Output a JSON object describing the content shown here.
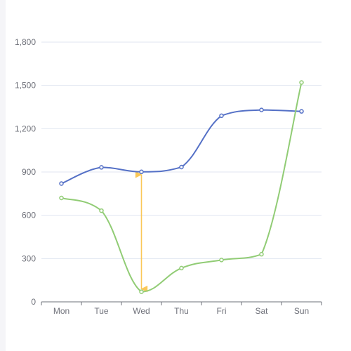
{
  "chart_data": {
    "type": "line",
    "categories": [
      "Mon",
      "Tue",
      "Wed",
      "Thu",
      "Fri",
      "Sat",
      "Sun"
    ],
    "series": [
      {
        "values": [
          820,
          932,
          901,
          934,
          1290,
          1330,
          1320
        ],
        "color": "#5470c6",
        "smooth": true
      },
      {
        "values": [
          720,
          632,
          70,
          234,
          290,
          330,
          1520
        ],
        "color": "#91cc75",
        "smooth": true
      }
    ],
    "yticks": [
      0,
      300,
      600,
      900,
      1200,
      1500,
      1800
    ],
    "ytick_labels": [
      "0",
      "300",
      "600",
      "900",
      "1,200",
      "1,500",
      "1,800"
    ],
    "ylim": [
      0,
      1800
    ],
    "grid": true,
    "annotation": {
      "type": "double-arrow",
      "category": "Wed",
      "from": 901,
      "to": 70,
      "color": "#fac858"
    }
  }
}
